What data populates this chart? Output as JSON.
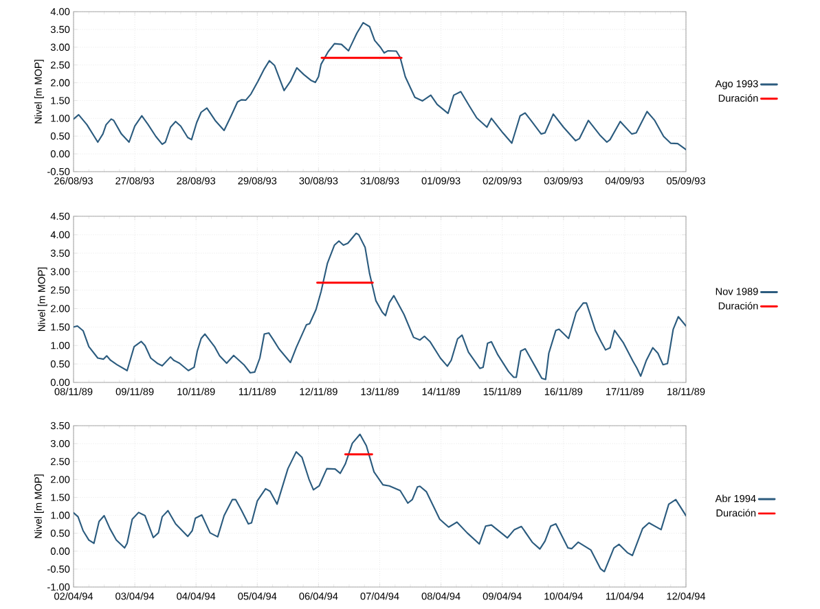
{
  "chart_data": [
    {
      "type": "line",
      "ylabel": "Nivel [m MOP]",
      "grid": true,
      "legend": "right",
      "xlim": [
        "1993-08-26",
        "1993-09-05"
      ],
      "ylim": [
        -0.5,
        4.0
      ],
      "xticks": [
        {
          "value": "1993-08-26",
          "label": "26/08/93"
        },
        {
          "value": "1993-08-27",
          "label": "27/08/93"
        },
        {
          "value": "1993-08-28",
          "label": "28/08/93"
        },
        {
          "value": "1993-08-29",
          "label": "29/08/93"
        },
        {
          "value": "1993-08-30",
          "label": "30/08/93"
        },
        {
          "value": "1993-08-31",
          "label": "31/08/93"
        },
        {
          "value": "1993-09-01",
          "label": "01/09/93"
        },
        {
          "value": "1993-09-02",
          "label": "02/09/93"
        },
        {
          "value": "1993-09-03",
          "label": "03/09/93"
        },
        {
          "value": "1993-09-04",
          "label": "04/09/93"
        },
        {
          "value": "1993-09-05",
          "label": "05/09/93"
        }
      ],
      "yticks": [
        {
          "value": -0.5,
          "label": "-0.50"
        },
        {
          "value": 0,
          "label": "0.00"
        },
        {
          "value": 0.5,
          "label": "0.50"
        },
        {
          "value": 1,
          "label": "1.00"
        },
        {
          "value": 1.5,
          "label": "1.50"
        },
        {
          "value": 2,
          "label": "2.00"
        },
        {
          "value": 2.5,
          "label": "2.50"
        },
        {
          "value": 3,
          "label": "3.00"
        },
        {
          "value": 3.5,
          "label": "3.50"
        },
        {
          "value": 4,
          "label": "4.00"
        }
      ],
      "series": [
        {
          "name": "Ago 1993",
          "color": "#2b5b7e",
          "x": [
            "1993-08-26T00:00",
            "1993-08-26T02:00",
            "1993-08-26T05:15",
            "1993-08-26T09:30",
            "1993-08-26T11:30",
            "1993-08-26T12:45",
            "1993-08-26T14:45",
            "1993-08-26T15:45",
            "1993-08-26T18:45",
            "1993-08-26T21:45",
            "1993-08-27T00:00",
            "1993-08-27T02:45",
            "1993-08-27T05:15",
            "1993-08-27T08:15",
            "1993-08-27T10:45",
            "1993-08-27T12:00",
            "1993-08-27T14:00",
            "1993-08-27T16:00",
            "1993-08-27T18:00",
            "1993-08-27T20:45",
            "1993-08-27T22:15",
            "1993-08-28T00:15",
            "1993-08-28T02:00",
            "1993-08-28T04:15",
            "1993-08-28T07:30",
            "1993-08-28T11:00",
            "1993-08-28T13:45",
            "1993-08-28T16:15",
            "1993-08-28T17:45",
            "1993-08-28T19:30",
            "1993-08-28T21:30",
            "1993-08-29T00:15",
            "1993-08-29T02:45",
            "1993-08-29T04:45",
            "1993-08-29T06:45",
            "1993-08-29T10:30",
            "1993-08-29T13:00",
            "1993-08-29T15:30",
            "1993-08-29T18:15",
            "1993-08-29T21:00",
            "1993-08-29T22:45",
            "1993-08-30T00:00",
            "1993-08-30T01:00",
            "1993-08-30T03:45",
            "1993-08-30T06:15",
            "1993-08-30T09:00",
            "1993-08-30T11:45",
            "1993-08-30T15:00",
            "1993-08-30T17:30",
            "1993-08-30T20:00",
            "1993-08-30T22:00",
            "1993-08-31T00:15",
            "1993-08-31T01:45",
            "1993-08-31T03:15",
            "1993-08-31T06:30",
            "1993-08-31T08:00",
            "1993-08-31T10:00",
            "1993-08-31T13:45",
            "1993-08-31T16:45",
            "1993-08-31T20:00",
            "1993-08-31T22:30",
            "1993-09-01T02:45",
            "1993-09-01T05:00",
            "1993-09-01T07:45",
            "1993-09-01T11:15",
            "1993-09-01T14:00",
            "1993-09-01T18:00",
            "1993-09-01T19:45",
            "1993-09-02T00:15",
            "1993-09-02T03:45",
            "1993-09-02T07:00",
            "1993-09-02T09:00",
            "1993-09-02T11:15",
            "1993-09-02T15:15",
            "1993-09-02T16:45",
            "1993-09-02T20:00",
            "1993-09-03T00:00",
            "1993-09-03T04:45",
            "1993-09-03T06:15",
            "1993-09-03T09:45",
            "1993-09-03T14:15",
            "1993-09-03T17:00",
            "1993-09-03T18:15",
            "1993-09-03T22:15",
            "1993-09-04T02:45",
            "1993-09-04T04:30",
            "1993-09-04T08:45",
            "1993-09-04T11:45",
            "1993-09-04T15:15",
            "1993-09-04T18:00",
            "1993-09-04T20:45",
            "1993-09-05T00:00"
          ],
          "values": [
            0.98,
            1.1,
            0.82,
            0.33,
            0.56,
            0.82,
            0.98,
            0.94,
            0.56,
            0.33,
            0.78,
            1.07,
            0.82,
            0.49,
            0.27,
            0.33,
            0.75,
            0.91,
            0.78,
            0.46,
            0.4,
            0.88,
            1.17,
            1.29,
            0.94,
            0.66,
            1.07,
            1.46,
            1.52,
            1.51,
            1.68,
            2.04,
            2.39,
            2.62,
            2.49,
            1.78,
            2.04,
            2.42,
            2.23,
            2.07,
            2.01,
            2.17,
            2.52,
            2.87,
            3.1,
            3.08,
            2.9,
            3.39,
            3.69,
            3.58,
            3.19,
            3.0,
            2.84,
            2.9,
            2.89,
            2.71,
            2.17,
            1.59,
            1.49,
            1.65,
            1.39,
            1.14,
            1.65,
            1.75,
            1.33,
            1.01,
            0.75,
            1.0,
            0.59,
            0.3,
            1.07,
            1.15,
            0.94,
            0.56,
            0.59,
            1.12,
            0.75,
            0.37,
            0.43,
            0.94,
            0.53,
            0.33,
            0.4,
            0.91,
            0.56,
            0.59,
            1.19,
            0.94,
            0.49,
            0.3,
            0.29,
            0.12
          ]
        },
        {
          "name": "Duración",
          "color": "#ff0000",
          "x": [
            "1993-08-30T01:15",
            "1993-08-31T08:30"
          ],
          "values": [
            2.7,
            2.7
          ]
        }
      ]
    },
    {
      "type": "line",
      "ylabel": "Nivel [m MOP]",
      "grid": true,
      "legend": "right",
      "xlim": [
        "1989-11-08",
        "1989-11-18"
      ],
      "ylim": [
        0,
        4.5
      ],
      "xticks": [
        {
          "value": "1989-11-08",
          "label": "08/11/89"
        },
        {
          "value": "1989-11-09",
          "label": "09/11/89"
        },
        {
          "value": "1989-11-10",
          "label": "10/11/89"
        },
        {
          "value": "1989-11-11",
          "label": "11/11/89"
        },
        {
          "value": "1989-11-12",
          "label": "12/11/89"
        },
        {
          "value": "1989-11-13",
          "label": "13/11/89"
        },
        {
          "value": "1989-11-14",
          "label": "14/11/89"
        },
        {
          "value": "1989-11-15",
          "label": "15/11/89"
        },
        {
          "value": "1989-11-16",
          "label": "16/11/89"
        },
        {
          "value": "1989-11-17",
          "label": "17/11/89"
        },
        {
          "value": "1989-11-18",
          "label": "18/11/89"
        }
      ],
      "yticks": [
        {
          "value": 0,
          "label": "0.00"
        },
        {
          "value": 0.5,
          "label": "0.50"
        },
        {
          "value": 1,
          "label": "1.00"
        },
        {
          "value": 1.5,
          "label": "1.50"
        },
        {
          "value": 2,
          "label": "2.00"
        },
        {
          "value": 2.5,
          "label": "2.50"
        },
        {
          "value": 3,
          "label": "3.00"
        },
        {
          "value": 3.5,
          "label": "3.50"
        },
        {
          "value": 4,
          "label": "4.00"
        },
        {
          "value": 4.5,
          "label": "4.50"
        }
      ],
      "series": [
        {
          "name": "Nov 1989",
          "color": "#2b5b7e",
          "x": [
            "1989-11-08T00:00",
            "1989-11-08T01:30",
            "1989-11-08T03:45",
            "1989-11-08T06:00",
            "1989-11-08T09:30",
            "1989-11-08T11:45",
            "1989-11-08T13:00",
            "1989-11-08T14:30",
            "1989-11-08T17:00",
            "1989-11-08T21:00",
            "1989-11-08T23:45",
            "1989-11-09T02:30",
            "1989-11-09T04:00",
            "1989-11-09T06:15",
            "1989-11-09T09:00",
            "1989-11-09T10:45",
            "1989-11-09T14:00",
            "1989-11-09T15:15",
            "1989-11-09T17:30",
            "1989-11-09T21:00",
            "1989-11-09T23:15",
            "1989-11-10T00:30",
            "1989-11-10T02:00",
            "1989-11-10T03:30",
            "1989-11-10T07:15",
            "1989-11-10T09:15",
            "1989-11-10T12:00",
            "1989-11-10T14:45",
            "1989-11-10T18:45",
            "1989-11-10T21:15",
            "1989-11-10T23:00",
            "1989-11-11T01:00",
            "1989-11-11T02:45",
            "1989-11-11T04:30",
            "1989-11-11T06:15",
            "1989-11-11T08:30",
            "1989-11-11T13:00",
            "1989-11-11T15:15",
            "1989-11-11T19:15",
            "1989-11-11T20:30",
            "1989-11-11T23:00",
            "1989-11-12T01:00",
            "1989-11-12T03:30",
            "1989-11-12T06:15",
            "1989-11-12T08:00",
            "1989-11-12T09:45",
            "1989-11-12T11:30",
            "1989-11-12T14:45",
            "1989-11-12T15:45",
            "1989-11-12T18:15",
            "1989-11-12T20:00",
            "1989-11-12T22:30",
            "1989-11-13T01:00",
            "1989-11-13T02:15",
            "1989-11-13T03:45",
            "1989-11-13T05:30",
            "1989-11-13T09:30",
            "1989-11-13T13:15",
            "1989-11-13T15:45",
            "1989-11-13T17:30",
            "1989-11-13T19:45",
            "1989-11-13T23:45",
            "1989-11-14T02:30",
            "1989-11-14T04:00",
            "1989-11-14T06:30",
            "1989-11-14T08:15",
            "1989-11-14T10:45",
            "1989-11-14T15:15",
            "1989-11-14T16:30",
            "1989-11-14T18:15",
            "1989-11-14T19:45",
            "1989-11-14T22:15",
            "1989-11-15T02:30",
            "1989-11-15T04:30",
            "1989-11-15T05:30",
            "1989-11-15T07:15",
            "1989-11-15T09:00",
            "1989-11-15T13:00",
            "1989-11-15T15:30",
            "1989-11-15T17:00",
            "1989-11-15T18:15",
            "1989-11-15T21:00",
            "1989-11-15T22:15",
            "1989-11-16T02:00",
            "1989-11-16T05:00",
            "1989-11-16T07:45",
            "1989-11-16T09:00",
            "1989-11-16T12:30",
            "1989-11-16T14:45",
            "1989-11-16T16:30",
            "1989-11-16T18:15",
            "1989-11-16T20:00",
            "1989-11-16T23:30",
            "1989-11-17T03:15",
            "1989-11-17T04:45",
            "1989-11-17T06:15",
            "1989-11-17T08:30",
            "1989-11-17T11:00",
            "1989-11-17T13:00",
            "1989-11-17T15:00",
            "1989-11-17T16:45",
            "1989-11-17T19:00",
            "1989-11-17T21:00",
            "1989-11-18T00:00"
          ],
          "values": [
            1.5,
            1.53,
            1.4,
            0.97,
            0.66,
            0.63,
            0.72,
            0.6,
            0.48,
            0.32,
            0.97,
            1.11,
            1.0,
            0.66,
            0.51,
            0.45,
            0.69,
            0.6,
            0.52,
            0.32,
            0.41,
            0.85,
            1.19,
            1.31,
            0.97,
            0.72,
            0.52,
            0.73,
            0.48,
            0.26,
            0.28,
            0.66,
            1.31,
            1.34,
            1.16,
            0.91,
            0.54,
            0.94,
            1.56,
            1.59,
            1.97,
            2.46,
            3.23,
            3.72,
            3.83,
            3.72,
            3.77,
            4.04,
            4.0,
            3.66,
            2.95,
            2.21,
            1.9,
            1.81,
            2.16,
            2.35,
            1.84,
            1.22,
            1.15,
            1.25,
            1.1,
            0.66,
            0.44,
            0.6,
            1.18,
            1.28,
            0.82,
            0.38,
            0.41,
            1.06,
            1.1,
            0.75,
            0.29,
            0.14,
            0.14,
            0.85,
            0.91,
            0.42,
            0.11,
            0.08,
            0.79,
            1.41,
            1.44,
            1.19,
            1.9,
            2.15,
            2.15,
            1.41,
            1.1,
            0.88,
            0.94,
            1.41,
            1.07,
            0.57,
            0.39,
            0.17,
            0.6,
            0.94,
            0.79,
            0.48,
            0.51,
            1.44,
            1.78,
            1.53
          ]
        },
        {
          "name": "Duración",
          "color": "#ff0000",
          "x": [
            "1989-11-11T23:30",
            "1989-11-12T21:15"
          ],
          "values": [
            2.7,
            2.7
          ]
        }
      ]
    },
    {
      "type": "line",
      "ylabel": "Nivel [m MOP]",
      "grid": true,
      "legend": "right",
      "xlim": [
        "1994-04-02",
        "1994-04-12"
      ],
      "ylim": [
        -1.0,
        3.5
      ],
      "xticks": [
        {
          "value": "1994-04-02",
          "label": "02/04/94"
        },
        {
          "value": "1994-04-03",
          "label": "03/04/94"
        },
        {
          "value": "1994-04-04",
          "label": "04/04/94"
        },
        {
          "value": "1994-04-05",
          "label": "05/04/94"
        },
        {
          "value": "1994-04-06",
          "label": "06/04/94"
        },
        {
          "value": "1994-04-07",
          "label": "07/04/94"
        },
        {
          "value": "1994-04-08",
          "label": "08/04/94"
        },
        {
          "value": "1994-04-09",
          "label": "09/04/94"
        },
        {
          "value": "1994-04-10",
          "label": "10/04/94"
        },
        {
          "value": "1994-04-11",
          "label": "11/04/94"
        },
        {
          "value": "1994-04-12",
          "label": "12/04/94"
        }
      ],
      "yticks": [
        {
          "value": -1,
          "label": "-1.00"
        },
        {
          "value": -0.5,
          "label": "-0.50"
        },
        {
          "value": 0,
          "label": "0.00"
        },
        {
          "value": 0.5,
          "label": "0.50"
        },
        {
          "value": 1,
          "label": "1.00"
        },
        {
          "value": 1.5,
          "label": "1.50"
        },
        {
          "value": 2,
          "label": "2.00"
        },
        {
          "value": 2.5,
          "label": "2.50"
        },
        {
          "value": 3,
          "label": "3.00"
        },
        {
          "value": 3.5,
          "label": "3.50"
        }
      ],
      "series": [
        {
          "name": "Abr 1994",
          "color": "#2b5b7e",
          "x": [
            "1994-04-02T00:00",
            "1994-04-02T01:45",
            "1994-04-02T03:45",
            "1994-04-02T06:00",
            "1994-04-02T08:00",
            "1994-04-02T10:00",
            "1994-04-02T12:00",
            "1994-04-02T14:15",
            "1994-04-02T16:45",
            "1994-04-02T20:00",
            "1994-04-02T21:00",
            "1994-04-02T23:00",
            "1994-04-03T01:30",
            "1994-04-03T04:00",
            "1994-04-03T07:15",
            "1994-04-03T09:15",
            "1994-04-03T10:45",
            "1994-04-03T13:00",
            "1994-04-03T16:00",
            "1994-04-03T20:45",
            "1994-04-03T22:30",
            "1994-04-03T23:45",
            "1994-04-04T02:15",
            "1994-04-04T05:30",
            "1994-04-04T08:30",
            "1994-04-04T11:00",
            "1994-04-04T14:15",
            "1994-04-04T15:30",
            "1994-04-04T17:45",
            "1994-04-04T20:30",
            "1994-04-04T21:45",
            "1994-04-05T00:00",
            "1994-04-05T03:15",
            "1994-04-05T05:00",
            "1994-04-05T07:45",
            "1994-04-05T09:15",
            "1994-04-05T12:00",
            "1994-04-05T15:15",
            "1994-04-05T17:30",
            "1994-04-05T20:15",
            "1994-04-05T22:00",
            "1994-04-06T00:15",
            "1994-04-06T03:15",
            "1994-04-06T06:30",
            "1994-04-06T08:30",
            "1994-04-06T10:30",
            "1994-04-06T13:15",
            "1994-04-06T16:15",
            "1994-04-06T18:45",
            "1994-04-06T21:45",
            "1994-04-07T01:15",
            "1994-04-07T03:45",
            "1994-04-07T08:00",
            "1994-04-07T11:00",
            "1994-04-07T12:45",
            "1994-04-07T14:45",
            "1994-04-07T15:45",
            "1994-04-07T18:15",
            "1994-04-07T23:30",
            "1994-04-08T03:00",
            "1994-04-08T06:15",
            "1994-04-08T10:15",
            "1994-04-08T15:00",
            "1994-04-08T17:30",
            "1994-04-08T19:45",
            "1994-04-09T02:00",
            "1994-04-09T04:45",
            "1994-04-09T07:30",
            "1994-04-09T11:45",
            "1994-04-09T14:45",
            "1994-04-09T16:45",
            "1994-04-09T19:00",
            "1994-04-09T21:00",
            "1994-04-10T01:45",
            "1994-04-10T03:15",
            "1994-04-10T05:45",
            "1994-04-10T10:45",
            "1994-04-10T14:30",
            "1994-04-10T16:00",
            "1994-04-10T19:45",
            "1994-04-10T21:45",
            "1994-04-11T01:00",
            "1994-04-11T03:00",
            "1994-04-11T07:00",
            "1994-04-11T09:30",
            "1994-04-11T14:15",
            "1994-04-11T17:15",
            "1994-04-11T20:00",
            "1994-04-12T00:00"
          ],
          "values": [
            1.07,
            0.96,
            0.57,
            0.31,
            0.22,
            0.83,
            0.99,
            0.63,
            0.31,
            0.09,
            0.22,
            0.89,
            1.08,
            0.99,
            0.38,
            0.51,
            0.96,
            1.13,
            0.76,
            0.41,
            0.57,
            0.92,
            1.01,
            0.51,
            0.4,
            0.99,
            1.44,
            1.44,
            1.15,
            0.76,
            0.79,
            1.4,
            1.74,
            1.67,
            1.31,
            1.66,
            2.3,
            2.77,
            2.62,
            2.01,
            1.71,
            1.82,
            2.3,
            2.29,
            2.17,
            2.43,
            3.01,
            3.26,
            2.94,
            2.21,
            1.85,
            1.82,
            1.69,
            1.34,
            1.44,
            1.79,
            1.81,
            1.66,
            0.89,
            0.67,
            0.81,
            0.51,
            0.2,
            0.7,
            0.73,
            0.37,
            0.6,
            0.69,
            0.25,
            0.06,
            0.28,
            0.7,
            0.76,
            0.09,
            0.07,
            0.25,
            0.03,
            -0.49,
            -0.57,
            0.09,
            0.19,
            -0.04,
            -0.12,
            0.63,
            0.79,
            0.6,
            1.31,
            1.44,
            0.99
          ]
        },
        {
          "name": "Duración",
          "color": "#ff0000",
          "x": [
            "1994-04-06T10:30",
            "1994-04-06T21:00"
          ],
          "values": [
            2.7,
            2.7
          ]
        }
      ]
    }
  ]
}
